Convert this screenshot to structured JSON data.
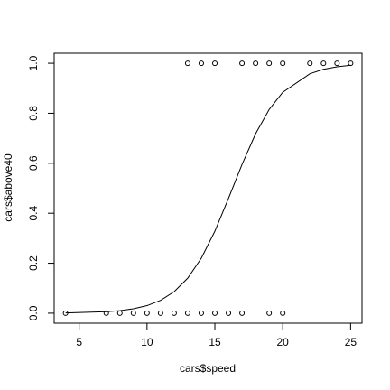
{
  "chart_data": {
    "type": "scatter",
    "xlabel": "cars$speed",
    "ylabel": "cars$above40",
    "points": {
      "color": "#000000",
      "x": [
        4,
        7,
        8,
        9,
        10,
        11,
        12,
        13,
        14,
        15,
        16,
        17,
        19,
        20,
        13,
        14,
        15,
        17,
        18,
        19,
        20,
        22,
        23,
        24,
        25
      ],
      "values": [
        0,
        0,
        0,
        0,
        0,
        0,
        0,
        0,
        0,
        0,
        0,
        0,
        0,
        0,
        1,
        1,
        1,
        1,
        1,
        1,
        1,
        1,
        1,
        1,
        1
      ]
    },
    "curve": {
      "color": "#000000",
      "x": [
        4,
        7,
        8,
        9,
        10,
        11,
        12,
        13,
        14,
        15,
        16,
        17,
        18,
        19,
        20,
        22,
        23,
        24,
        25
      ],
      "values": [
        0.0012,
        0.006,
        0.0103,
        0.0177,
        0.0303,
        0.0514,
        0.0859,
        0.14,
        0.22,
        0.328,
        0.459,
        0.595,
        0.718,
        0.815,
        0.884,
        0.958,
        0.976,
        0.986,
        0.992
      ]
    },
    "xlim": [
      3.16,
      25.84
    ],
    "ylim": [
      -0.04,
      1.04
    ],
    "xticks": [
      5,
      10,
      15,
      20,
      25
    ],
    "yticks": [
      {
        "value": 0,
        "label": "0.0"
      },
      0.2,
      0.4,
      0.6,
      0.8,
      {
        "value": 1,
        "label": "1.0"
      }
    ]
  }
}
